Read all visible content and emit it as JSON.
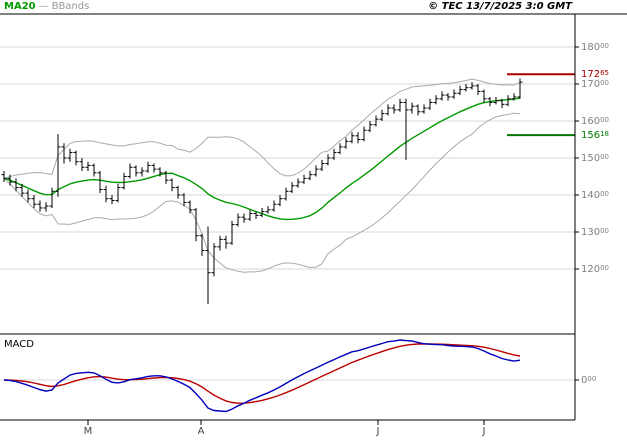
{
  "header": {
    "legend": {
      "ma20": "MA20",
      "separator": "—",
      "bbands": "BBands"
    },
    "copyright": "© TEC 13/7/2025 3:0 GMT"
  },
  "colors": {
    "candle": "#000000",
    "ma20": "#009900",
    "bollinger": "#aaaaaa",
    "grid": "#d9d9d9",
    "axis_text": "#808080",
    "frame": "#000000",
    "resistance_line": "#aa0000",
    "support_line": "#007700",
    "macd_line": "#0000bb",
    "macd_signal": "#bb0000"
  },
  "macd_panel": {
    "label": "MACD",
    "zero_label_main": "0",
    "zero_label_sub": "00"
  },
  "x_axis": {
    "month_labels": [
      {
        "label": "M",
        "x": 88
      },
      {
        "label": "A",
        "x": 201
      },
      {
        "label": "J",
        "x": 378
      },
      {
        "label": "J",
        "x": 484
      }
    ]
  },
  "y_axis": {
    "ticks": [
      {
        "main": "180",
        "sub": "00",
        "value": 180
      },
      {
        "main": "170",
        "sub": "00",
        "value": 170
      },
      {
        "main": "160",
        "sub": "00",
        "value": 160
      },
      {
        "main": "150",
        "sub": "00",
        "value": 150
      },
      {
        "main": "140",
        "sub": "00",
        "value": 140
      },
      {
        "main": "130",
        "sub": "00",
        "value": 130
      },
      {
        "main": "120",
        "sub": "00",
        "value": 120
      }
    ]
  },
  "chart_data": {
    "type": "candlestick",
    "title": "",
    "ylim": [
      108,
      186
    ],
    "price_lines": [
      {
        "value": 172.65,
        "label_main": "172",
        "label_sub": "65",
        "color": "#aa0000",
        "role": "resistance"
      },
      {
        "value": 156.18,
        "label_main": "156",
        "label_sub": "18",
        "color": "#007700",
        "role": "support"
      }
    ],
    "overlays": [
      {
        "name": "MA20",
        "window": 20
      },
      {
        "name": "BollingerBands",
        "window": 20,
        "stddev": 2
      }
    ],
    "indicator": {
      "name": "MACD",
      "fast": 12,
      "slow": 26,
      "signal": 9,
      "derived_from": "candle closes"
    },
    "candles": [
      [
        145.5,
        146.5,
        143.5,
        144.5
      ],
      [
        144.5,
        145.5,
        142.5,
        143.5
      ],
      [
        143.5,
        144.5,
        141.0,
        142.0
      ],
      [
        142.0,
        143.0,
        139.5,
        140.5
      ],
      [
        140.5,
        141.5,
        138.0,
        139.0
      ],
      [
        139.0,
        140.0,
        136.5,
        137.5
      ],
      [
        137.5,
        138.5,
        135.5,
        136.5
      ],
      [
        136.5,
        138.0,
        135.5,
        137.0
      ],
      [
        137.0,
        142.0,
        136.5,
        141.0
      ],
      [
        141.0,
        156.5,
        139.5,
        153.0
      ],
      [
        153.0,
        154.0,
        148.5,
        150.0
      ],
      [
        150.0,
        152.5,
        149.0,
        151.5
      ],
      [
        151.5,
        152.0,
        148.0,
        149.0
      ],
      [
        149.0,
        150.0,
        146.5,
        147.5
      ],
      [
        147.5,
        149.0,
        146.5,
        148.0
      ],
      [
        148.0,
        148.5,
        145.0,
        146.0
      ],
      [
        146.0,
        146.5,
        140.5,
        141.5
      ],
      [
        141.5,
        142.5,
        138.0,
        139.0
      ],
      [
        139.0,
        140.0,
        137.5,
        138.5
      ],
      [
        138.5,
        143.0,
        138.0,
        142.0
      ],
      [
        142.0,
        146.0,
        141.5,
        145.0
      ],
      [
        145.0,
        148.5,
        144.5,
        147.5
      ],
      [
        147.5,
        148.0,
        145.0,
        146.0
      ],
      [
        146.0,
        147.5,
        145.0,
        146.5
      ],
      [
        146.5,
        149.0,
        146.0,
        148.0
      ],
      [
        148.0,
        148.5,
        146.0,
        147.0
      ],
      [
        147.0,
        147.5,
        145.0,
        146.0
      ],
      [
        146.0,
        146.5,
        143.0,
        144.0
      ],
      [
        144.0,
        144.5,
        141.0,
        142.0
      ],
      [
        142.0,
        142.5,
        139.0,
        140.0
      ],
      [
        140.0,
        140.5,
        137.0,
        138.0
      ],
      [
        138.0,
        138.5,
        135.0,
        136.0
      ],
      [
        136.0,
        136.5,
        127.5,
        129.0
      ],
      [
        129.0,
        129.5,
        123.5,
        125.0
      ],
      [
        125.0,
        131.5,
        110.5,
        119.0
      ],
      [
        119.0,
        127.0,
        118.0,
        126.0
      ],
      [
        126.0,
        129.0,
        125.0,
        128.0
      ],
      [
        128.0,
        129.0,
        125.5,
        127.0
      ],
      [
        127.0,
        133.0,
        126.5,
        132.0
      ],
      [
        132.0,
        135.0,
        131.5,
        134.0
      ],
      [
        134.0,
        135.0,
        132.5,
        133.5
      ],
      [
        133.5,
        136.0,
        133.0,
        135.0
      ],
      [
        135.0,
        135.5,
        133.5,
        134.5
      ],
      [
        134.5,
        136.5,
        134.0,
        135.5
      ],
      [
        135.5,
        137.0,
        135.0,
        136.0
      ],
      [
        136.0,
        138.5,
        135.5,
        137.5
      ],
      [
        137.5,
        140.0,
        137.0,
        139.0
      ],
      [
        139.0,
        142.0,
        138.5,
        141.0
      ],
      [
        141.0,
        143.5,
        140.5,
        142.5
      ],
      [
        142.5,
        144.5,
        142.0,
        143.5
      ],
      [
        143.5,
        145.5,
        143.0,
        144.5
      ],
      [
        144.5,
        146.5,
        144.0,
        145.5
      ],
      [
        145.5,
        148.0,
        145.0,
        147.0
      ],
      [
        147.0,
        149.5,
        146.5,
        148.5
      ],
      [
        148.5,
        151.0,
        148.0,
        150.0
      ],
      [
        150.0,
        152.5,
        149.5,
        151.5
      ],
      [
        151.5,
        154.0,
        151.0,
        153.0
      ],
      [
        153.0,
        155.5,
        152.5,
        154.5
      ],
      [
        154.5,
        157.0,
        154.0,
        156.0
      ],
      [
        156.0,
        157.0,
        154.0,
        155.0
      ],
      [
        155.0,
        158.5,
        154.5,
        157.5
      ],
      [
        157.5,
        160.0,
        157.0,
        159.0
      ],
      [
        159.0,
        161.5,
        158.5,
        160.5
      ],
      [
        160.5,
        163.0,
        160.0,
        162.0
      ],
      [
        162.0,
        164.5,
        161.5,
        163.5
      ],
      [
        163.5,
        164.5,
        162.0,
        163.0
      ],
      [
        163.0,
        166.0,
        162.5,
        165.0
      ],
      [
        165.0,
        166.0,
        149.5,
        163.0
      ],
      [
        163.0,
        165.0,
        162.0,
        164.0
      ],
      [
        164.0,
        164.5,
        161.5,
        162.5
      ],
      [
        162.5,
        164.5,
        162.0,
        163.5
      ],
      [
        163.5,
        166.0,
        163.0,
        165.0
      ],
      [
        165.0,
        167.0,
        164.5,
        166.0
      ],
      [
        166.0,
        168.0,
        165.5,
        167.0
      ],
      [
        167.0,
        167.5,
        165.5,
        166.5
      ],
      [
        166.5,
        168.5,
        166.0,
        167.5
      ],
      [
        167.5,
        169.5,
        167.0,
        168.5
      ],
      [
        168.5,
        170.0,
        168.0,
        169.0
      ],
      [
        169.0,
        170.5,
        168.5,
        169.5
      ],
      [
        169.5,
        170.0,
        167.0,
        168.0
      ],
      [
        168.0,
        168.5,
        165.0,
        166.0
      ],
      [
        166.0,
        166.5,
        164.0,
        165.0
      ],
      [
        165.0,
        166.5,
        164.5,
        165.5
      ],
      [
        165.5,
        166.0,
        163.5,
        164.5
      ],
      [
        164.5,
        167.0,
        164.0,
        166.0
      ],
      [
        166.0,
        167.5,
        165.5,
        166.5
      ],
      [
        166.5,
        171.5,
        166.0,
        170.5
      ]
    ]
  }
}
